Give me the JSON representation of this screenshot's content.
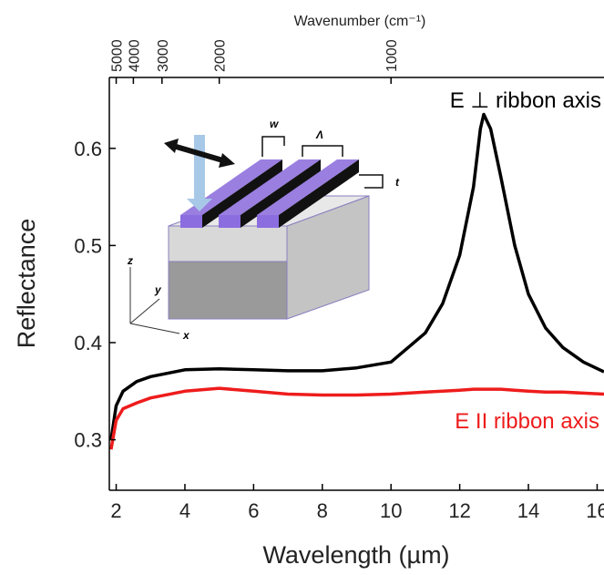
{
  "chart_data": {
    "type": "line",
    "x_label": "Wavelength (µm)",
    "y_label": "Reflectance",
    "top_axis": {
      "label": "Wavenumber (cm⁻¹)",
      "ticks": [
        5000,
        4000,
        3000,
        2000,
        1000
      ]
    },
    "x": [
      1.85,
      2,
      2.2,
      2.6,
      3,
      4,
      5,
      6,
      7,
      8,
      9,
      10,
      10.5,
      11,
      11.5,
      12,
      12.4,
      12.6,
      12.7,
      12.9,
      13.2,
      13.6,
      14,
      14.5,
      15,
      15.6,
      16.2
    ],
    "series": [
      {
        "name": "E ⊥ ribbon axis",
        "color": "#000000",
        "values": [
          0.3,
          0.335,
          0.35,
          0.36,
          0.365,
          0.372,
          0.373,
          0.372,
          0.371,
          0.371,
          0.374,
          0.38,
          0.395,
          0.41,
          0.44,
          0.49,
          0.56,
          0.62,
          0.635,
          0.62,
          0.57,
          0.5,
          0.45,
          0.415,
          0.395,
          0.38,
          0.37
        ]
      },
      {
        "name": "E II ribbon axis",
        "color": "#ee1c1c",
        "values": [
          0.29,
          0.32,
          0.332,
          0.338,
          0.343,
          0.35,
          0.353,
          0.35,
          0.347,
          0.346,
          0.346,
          0.347,
          0.348,
          0.349,
          0.35,
          0.351,
          0.352,
          0.352,
          0.352,
          0.352,
          0.352,
          0.351,
          0.35,
          0.349,
          0.349,
          0.348,
          0.347
        ]
      }
    ],
    "xlim": [
      1.8,
      16.2
    ],
    "xticks": [
      2,
      4,
      6,
      8,
      10,
      12,
      14,
      16
    ],
    "ylim": [
      0.248,
      0.673
    ],
    "yticks": [
      0.3,
      0.4,
      0.5,
      0.6
    ],
    "inset_labels": [
      "w",
      "Λ",
      "t",
      "z",
      "y",
      "x"
    ]
  }
}
